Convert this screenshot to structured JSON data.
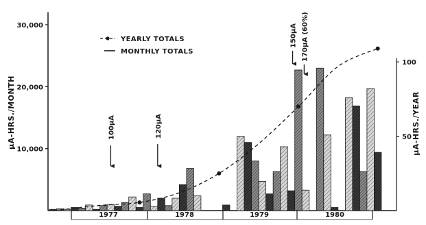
{
  "chart_data": {
    "type": "bar",
    "title": "",
    "ylabel_left": "µA-HRS./MONTH",
    "ylabel_right": "µA-HRS./YEAR",
    "ylim_left": [
      0,
      32000
    ],
    "ylim_right": [
      0,
      133.33
    ],
    "yticks_left": [
      "10,000",
      "20,000",
      "30,000"
    ],
    "yticks_left_values": [
      10000,
      20000,
      30000
    ],
    "yticks_right": [
      "50",
      "100"
    ],
    "yticks_right_values": [
      50,
      100
    ],
    "year_labels": [
      "1977",
      "1978",
      "1979",
      "1980"
    ],
    "legend": {
      "placement": "top-left",
      "yearly_label": "YEARLY TOTALS",
      "monthly_label": "MONTHLY TOTALS"
    },
    "series": [
      {
        "name": "MONTHLY TOTALS",
        "unit": "µA-hrs/month",
        "x_month_index": [
          0,
          1,
          2,
          3,
          4,
          5,
          6,
          7,
          8,
          9,
          10,
          11,
          12,
          13,
          14,
          15,
          16,
          17,
          18,
          19,
          20,
          21,
          22,
          23,
          24,
          25,
          26,
          27,
          28,
          29,
          30,
          31,
          32,
          33,
          34,
          35,
          36,
          37,
          38,
          39,
          40,
          41,
          42,
          43,
          44,
          45,
          46,
          47
        ],
        "values": [
          200,
          300,
          200,
          500,
          400,
          900,
          200,
          800,
          1000,
          700,
          1300,
          2200,
          500,
          2700,
          700,
          2000,
          800,
          2000,
          4200,
          6800,
          2400,
          0,
          0,
          0,
          900,
          0,
          12000,
          11000,
          8000,
          4700,
          2700,
          6300,
          10300,
          3200,
          22700,
          3300,
          0,
          23000,
          12200,
          500,
          0,
          18200,
          16900,
          6300,
          19700,
          9400,
          0,
          0
        ]
      },
      {
        "name": "YEARLY TOTALS",
        "unit": "µA-hrs/year",
        "x_month_index": [
          1.5,
          7,
          12.5,
          18,
          23.5,
          29,
          34.5,
          40,
          45.5
        ],
        "values": [
          0.5,
          3.5,
          5.5,
          12,
          25,
          45,
          70,
          97,
          109
        ]
      }
    ],
    "annotations": [
      {
        "label": "100µA",
        "x_month_index": 8.5
      },
      {
        "label": "120µA",
        "x_month_index": 15
      },
      {
        "label": "150µA",
        "x_month_index": 33.7
      },
      {
        "label": "170µA (60%)",
        "x_month_index": 35.3
      }
    ]
  },
  "colors": {
    "ink": "#1a1a1a",
    "bar_dark": "#2b2b2b",
    "bar_mid": "#6f6f6f",
    "bar_light": "#bdbdbd",
    "background": "#ffffff"
  }
}
